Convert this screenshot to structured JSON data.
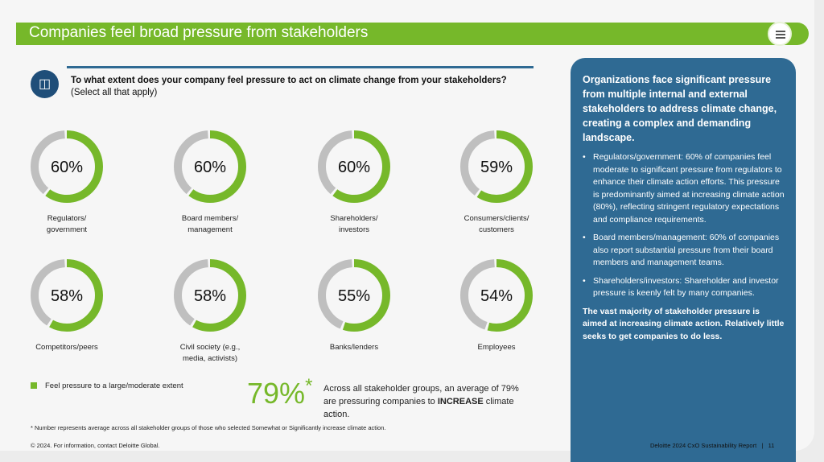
{
  "header": {
    "title": "Companies feel broad pressure from stakeholders",
    "menu_icon": "hamburger-icon"
  },
  "question": {
    "icon": "people-at-table-icon",
    "text": "To what extent does your company feel pressure to act on climate change from your stakeholders?",
    "note": "(Select all that apply)"
  },
  "colors": {
    "green": "#76b82a",
    "gray": "#bfbfbf",
    "blue": "#2f6a93"
  },
  "chart_data": {
    "type": "pie",
    "style": "donut",
    "categories": [
      "Regulators/ government",
      "Board members/ management",
      "Shareholders/ investors",
      "Consumers/clients/ customers",
      "Competitors/peers",
      "Civil society (e.g., media, activists)",
      "Banks/lenders",
      "Employees"
    ],
    "labels": [
      [
        "Regulators/",
        "government"
      ],
      [
        "Board members/",
        "management"
      ],
      [
        "Shareholders/",
        "investors"
      ],
      [
        "Consumers/clients/",
        "customers"
      ],
      [
        "Competitors/peers",
        ""
      ],
      [
        "Civil society (e.g.,",
        "media, activists)"
      ],
      [
        "Banks/lenders",
        ""
      ],
      [
        "Employees",
        ""
      ]
    ],
    "values": [
      60,
      60,
      60,
      59,
      58,
      58,
      55,
      54
    ],
    "value_labels": [
      "60%",
      "60%",
      "60%",
      "59%",
      "58%",
      "58%",
      "55%",
      "54%"
    ],
    "series": [
      {
        "name": "Feel pressure to a large/moderate extent",
        "values": [
          60,
          60,
          60,
          59,
          58,
          58,
          55,
          54
        ]
      }
    ],
    "legend": "bottom-left"
  },
  "legend": {
    "label": "Feel pressure to a large/moderate extent"
  },
  "average": {
    "value": "79%",
    "mark": "*",
    "text_pre": "Across all stakeholder groups, an average of 79% are pressuring companies to ",
    "text_bold": "INCREASE",
    "text_post": " climate action."
  },
  "footnote": "* Number represents average across all stakeholder groups of those who selected Somewhat or Significantly increase climate action.",
  "copyright": "© 2024. For information, contact Deloitte Global.",
  "panel": {
    "heading": "Organizations face significant pressure from multiple internal and external stakeholders to address climate change, creating a complex and demanding landscape.",
    "bullets": [
      "Regulators/government: 60% of companies feel moderate to significant pressure from regulators to enhance their climate action efforts. This pressure is predominantly aimed at increasing climate action (80%), reflecting stringent regulatory expectations and compliance requirements.",
      "Board members/management: 60% of companies also report substantial pressure from their board members and management teams.",
      "Shareholders/investors: Shareholder and investor pressure is keenly felt by many companies."
    ],
    "conclusion": "The vast majority of stakeholder pressure is aimed at increasing climate action. Relatively little seeks to get companies to do less."
  },
  "page_footer": {
    "report": "Deloitte 2024 CxO Sustainability Report",
    "separator": "|",
    "page": "11"
  }
}
